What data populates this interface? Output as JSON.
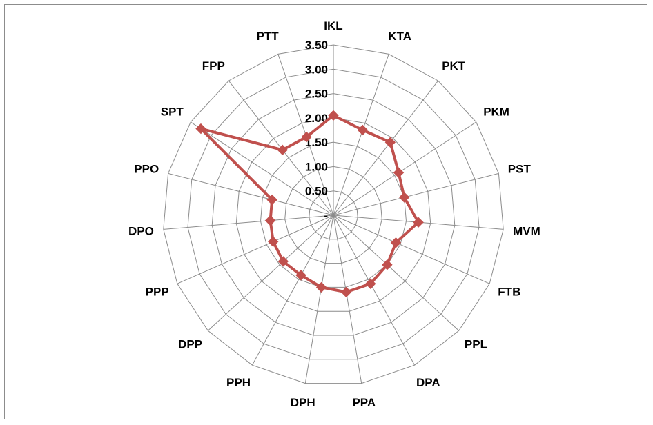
{
  "chart_data": {
    "type": "radar",
    "categories": [
      "IKL",
      "KTA",
      "PKT",
      "PKM",
      "PST",
      "MVM",
      "FTB",
      "PPL",
      "DPA",
      "PPA",
      "DPH",
      "PPH",
      "DPP",
      "PPP",
      "DPO",
      "PPO",
      "SPT",
      "FPP",
      "PTT"
    ],
    "series": [
      {
        "values": [
          2.05,
          1.85,
          1.9,
          1.6,
          1.5,
          1.75,
          1.4,
          1.5,
          1.6,
          1.6,
          1.5,
          1.4,
          1.4,
          1.35,
          1.3,
          1.3,
          3.25,
          1.7,
          1.7
        ],
        "color": "#c0504d"
      }
    ],
    "rlim": [
      0,
      3.5
    ],
    "ticks": [
      {
        "value": 0,
        "label": "-"
      },
      {
        "value": 0.5,
        "label": "0.50"
      },
      {
        "value": 1.0,
        "label": "1.00"
      },
      {
        "value": 1.5,
        "label": "1.50"
      },
      {
        "value": 2.0,
        "label": "2.00"
      },
      {
        "value": 2.5,
        "label": "2.50"
      },
      {
        "value": 3.0,
        "label": "3.00"
      },
      {
        "value": 3.5,
        "label": "3.50"
      }
    ],
    "grid": true,
    "grid_color": "#8c8c8c",
    "legend": "none"
  }
}
